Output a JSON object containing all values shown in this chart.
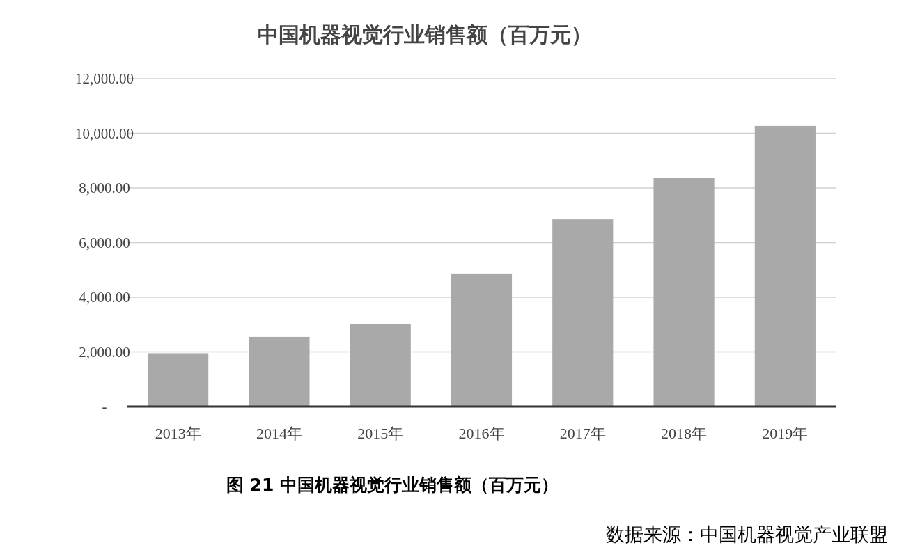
{
  "chart_data": {
    "type": "bar",
    "title": "中国机器视觉行业销售额（百万元）",
    "categories": [
      "2013年",
      "2014年",
      "2015年",
      "2016年",
      "2017年",
      "2018年",
      "2019年"
    ],
    "values": [
      1950,
      2550,
      3030,
      4870,
      6850,
      8380,
      10270
    ],
    "color": "#a9a9a9",
    "ylim": [
      0,
      12000
    ],
    "yticks": [
      {
        "value": 0,
        "label": "-"
      },
      {
        "value": 2000,
        "label": "2,000.00"
      },
      {
        "value": 4000,
        "label": "4,000.00"
      },
      {
        "value": 6000,
        "label": "6,000.00"
      },
      {
        "value": 8000,
        "label": "8,000.00"
      },
      {
        "value": 10000,
        "label": "10,000.00"
      },
      {
        "value": 12000,
        "label": "12,000.00"
      }
    ],
    "grid": "y",
    "annotations": [
      "图 21 中国机器视觉行业销售额（百万元）",
      "数据来源：中国机器视觉产业联盟"
    ]
  }
}
